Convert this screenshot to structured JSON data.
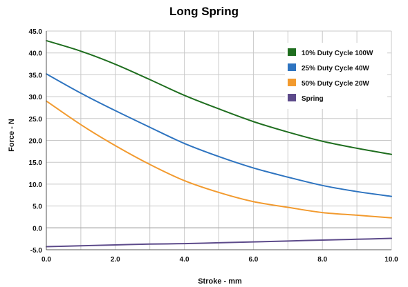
{
  "chart_data": {
    "type": "line",
    "title": "Long Spring",
    "xlabel": "Stroke - mm",
    "ylabel": "Force - N",
    "xlim": [
      0,
      10
    ],
    "ylim": [
      -5,
      45
    ],
    "x_ticks": [
      "0.0",
      "2.0",
      "4.0",
      "6.0",
      "8.0",
      "10.0"
    ],
    "y_ticks": [
      "45.0",
      "40.0",
      "35.0",
      "30.0",
      "25.0",
      "20.0",
      "15.0",
      "10.0",
      "5.0",
      "0.0",
      "-5.0"
    ],
    "grid": true,
    "legend_position": "top-right",
    "x": [
      0,
      1,
      2,
      3,
      4,
      5,
      6,
      7,
      8,
      9,
      10
    ],
    "series": [
      {
        "name": "10% Duty Cycle 100W",
        "color": "#1f6e1f",
        "values": [
          42.8,
          40.4,
          37.4,
          33.9,
          30.3,
          27.2,
          24.3,
          21.9,
          19.8,
          18.2,
          16.8
        ]
      },
      {
        "name": "25% Duty Cycle 40W",
        "color": "#2e74c0",
        "values": [
          35.2,
          30.8,
          26.8,
          23.0,
          19.3,
          16.3,
          13.7,
          11.6,
          9.7,
          8.3,
          7.2
        ]
      },
      {
        "name": "50% Duty Cycle 20W",
        "color": "#f29a2e",
        "values": [
          29.0,
          23.6,
          18.8,
          14.5,
          10.8,
          8.1,
          6.0,
          4.7,
          3.5,
          2.9,
          2.3
        ]
      },
      {
        "name": "Spring",
        "color": "#5c4a8a",
        "values": [
          -4.3,
          -4.1,
          -3.9,
          -3.7,
          -3.6,
          -3.4,
          -3.2,
          -3.0,
          -2.8,
          -2.6,
          -2.4
        ]
      }
    ]
  }
}
